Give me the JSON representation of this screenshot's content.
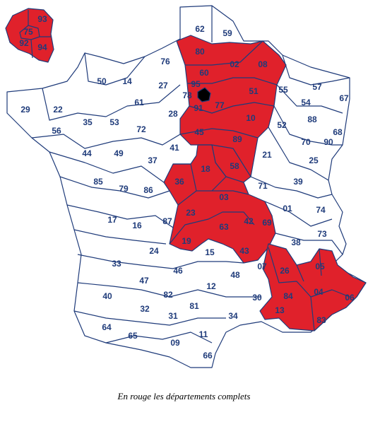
{
  "caption": "En rouge les départements complets",
  "colors": {
    "complete": "#e0212b",
    "partial": "#ffffff",
    "paris": "#000000",
    "border": "#1f3b7a",
    "label": "#1f3b7a"
  },
  "departments": [
    {
      "code": "93",
      "complete": true
    },
    {
      "code": "75",
      "complete": true
    },
    {
      "code": "92",
      "complete": true
    },
    {
      "code": "94",
      "complete": true
    },
    {
      "code": "62",
      "complete": false
    },
    {
      "code": "59",
      "complete": false
    },
    {
      "code": "80",
      "complete": true
    },
    {
      "code": "02",
      "complete": true
    },
    {
      "code": "08",
      "complete": true
    },
    {
      "code": "76",
      "complete": false
    },
    {
      "code": "60",
      "complete": true
    },
    {
      "code": "95",
      "complete": true
    },
    {
      "code": "50",
      "complete": false
    },
    {
      "code": "14",
      "complete": false
    },
    {
      "code": "27",
      "complete": false
    },
    {
      "code": "78",
      "complete": true
    },
    {
      "code": "91",
      "complete": true
    },
    {
      "code": "77",
      "complete": true
    },
    {
      "code": "51",
      "complete": true
    },
    {
      "code": "55",
      "complete": false
    },
    {
      "code": "57",
      "complete": false
    },
    {
      "code": "67",
      "complete": false
    },
    {
      "code": "54",
      "complete": false
    },
    {
      "code": "29",
      "complete": false
    },
    {
      "code": "22",
      "complete": false
    },
    {
      "code": "61",
      "complete": false
    },
    {
      "code": "28",
      "complete": false
    },
    {
      "code": "10",
      "complete": true
    },
    {
      "code": "88",
      "complete": false
    },
    {
      "code": "35",
      "complete": false
    },
    {
      "code": "53",
      "complete": false
    },
    {
      "code": "72",
      "complete": false
    },
    {
      "code": "52",
      "complete": false
    },
    {
      "code": "56",
      "complete": false
    },
    {
      "code": "45",
      "complete": true
    },
    {
      "code": "89",
      "complete": true
    },
    {
      "code": "68",
      "complete": false
    },
    {
      "code": "70",
      "complete": false
    },
    {
      "code": "90",
      "complete": false
    },
    {
      "code": "44",
      "complete": false
    },
    {
      "code": "49",
      "complete": false
    },
    {
      "code": "41",
      "complete": false
    },
    {
      "code": "21",
      "complete": false
    },
    {
      "code": "37",
      "complete": false
    },
    {
      "code": "25",
      "complete": false
    },
    {
      "code": "18",
      "complete": true
    },
    {
      "code": "58",
      "complete": true
    },
    {
      "code": "85",
      "complete": false
    },
    {
      "code": "79",
      "complete": false
    },
    {
      "code": "86",
      "complete": false
    },
    {
      "code": "36",
      "complete": true
    },
    {
      "code": "71",
      "complete": false
    },
    {
      "code": "39",
      "complete": false
    },
    {
      "code": "03",
      "complete": true
    },
    {
      "code": "01",
      "complete": false
    },
    {
      "code": "74",
      "complete": false
    },
    {
      "code": "17",
      "complete": false
    },
    {
      "code": "16",
      "complete": false
    },
    {
      "code": "23",
      "complete": true
    },
    {
      "code": "87",
      "complete": false
    },
    {
      "code": "63",
      "complete": true
    },
    {
      "code": "42",
      "complete": true
    },
    {
      "code": "69",
      "complete": true
    },
    {
      "code": "73",
      "complete": false
    },
    {
      "code": "38",
      "complete": false
    },
    {
      "code": "24",
      "complete": false
    },
    {
      "code": "19",
      "complete": true
    },
    {
      "code": "15",
      "complete": false
    },
    {
      "code": "43",
      "complete": true
    },
    {
      "code": "33",
      "complete": false
    },
    {
      "code": "05",
      "complete": true
    },
    {
      "code": "46",
      "complete": false
    },
    {
      "code": "48",
      "complete": false
    },
    {
      "code": "07",
      "complete": true
    },
    {
      "code": "26",
      "complete": true
    },
    {
      "code": "47",
      "complete": false
    },
    {
      "code": "40",
      "complete": false
    },
    {
      "code": "82",
      "complete": false
    },
    {
      "code": "12",
      "complete": false
    },
    {
      "code": "04",
      "complete": true
    },
    {
      "code": "06",
      "complete": true
    },
    {
      "code": "84",
      "complete": true
    },
    {
      "code": "30",
      "complete": false
    },
    {
      "code": "32",
      "complete": false
    },
    {
      "code": "81",
      "complete": false
    },
    {
      "code": "13",
      "complete": true
    },
    {
      "code": "34",
      "complete": false
    },
    {
      "code": "83",
      "complete": true
    },
    {
      "code": "31",
      "complete": false
    },
    {
      "code": "64",
      "complete": false
    },
    {
      "code": "65",
      "complete": false
    },
    {
      "code": "11",
      "complete": false
    },
    {
      "code": "09",
      "complete": false
    },
    {
      "code": "66",
      "complete": false
    }
  ]
}
